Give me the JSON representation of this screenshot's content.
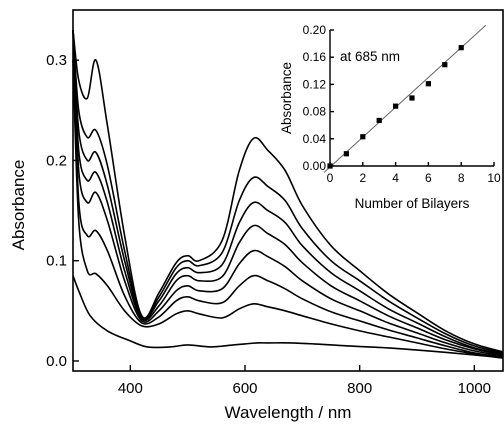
{
  "chart_data": [
    {
      "id": "spectra",
      "type": "line",
      "title": "",
      "xlabel": "Wavelength / nm",
      "ylabel": "Absorbance",
      "xlim": [
        300,
        1050
      ],
      "ylim": [
        -0.01,
        0.35
      ],
      "xticks": [
        400,
        600,
        800,
        1000
      ],
      "yticks": [
        0.0,
        0.1,
        0.2,
        0.3
      ],
      "ytick_labels": [
        "0.0",
        "0.1",
        "0.2",
        "0.3"
      ],
      "grid": false,
      "series": [
        {
          "bilayers": 1,
          "x": [
            300,
            310,
            330,
            360,
            400,
            430,
            470,
            500,
            540,
            580,
            600,
            620,
            640,
            680,
            720,
            780,
            850,
            920,
            1000,
            1050
          ],
          "y": [
            0.085,
            0.07,
            0.045,
            0.03,
            0.02,
            0.014,
            0.014,
            0.016,
            0.014,
            0.016,
            0.017,
            0.018,
            0.018,
            0.018,
            0.017,
            0.015,
            0.013,
            0.01,
            0.006,
            0.003
          ]
        },
        {
          "bilayers": 2,
          "x": [
            300,
            310,
            325,
            340,
            360,
            390,
            420,
            450,
            480,
            500,
            520,
            560,
            590,
            615,
            640,
            670,
            700,
            750,
            800,
            850,
            900,
            950,
            1000,
            1050
          ],
          "y": [
            0.3,
            0.14,
            0.09,
            0.087,
            0.075,
            0.05,
            0.035,
            0.037,
            0.047,
            0.05,
            0.047,
            0.043,
            0.052,
            0.057,
            0.054,
            0.05,
            0.045,
            0.037,
            0.03,
            0.024,
            0.018,
            0.012,
            0.007,
            0.003
          ]
        },
        {
          "bilayers": 3,
          "x": [
            300,
            310,
            325,
            340,
            360,
            390,
            420,
            450,
            480,
            500,
            520,
            560,
            590,
            615,
            640,
            670,
            700,
            750,
            800,
            850,
            900,
            950,
            1000,
            1050
          ],
          "y": [
            0.33,
            0.16,
            0.125,
            0.13,
            0.11,
            0.065,
            0.038,
            0.044,
            0.06,
            0.064,
            0.06,
            0.058,
            0.075,
            0.085,
            0.08,
            0.072,
            0.062,
            0.049,
            0.04,
            0.031,
            0.023,
            0.015,
            0.008,
            0.004
          ]
        },
        {
          "bilayers": 4,
          "x": [
            300,
            310,
            325,
            340,
            360,
            390,
            420,
            450,
            480,
            500,
            520,
            560,
            590,
            615,
            640,
            670,
            700,
            750,
            800,
            850,
            900,
            950,
            1000,
            1050
          ],
          "y": [
            0.33,
            0.19,
            0.158,
            0.168,
            0.14,
            0.08,
            0.04,
            0.05,
            0.07,
            0.075,
            0.07,
            0.072,
            0.097,
            0.11,
            0.104,
            0.094,
            0.08,
            0.062,
            0.05,
            0.038,
            0.028,
            0.018,
            0.01,
            0.005
          ]
        },
        {
          "bilayers": 5,
          "x": [
            300,
            310,
            325,
            340,
            360,
            390,
            420,
            450,
            480,
            500,
            520,
            560,
            590,
            615,
            640,
            670,
            700,
            750,
            800,
            850,
            900,
            950,
            1000,
            1050
          ],
          "y": [
            0.33,
            0.21,
            0.18,
            0.188,
            0.158,
            0.09,
            0.042,
            0.055,
            0.08,
            0.085,
            0.08,
            0.084,
            0.118,
            0.135,
            0.127,
            0.116,
            0.098,
            0.075,
            0.06,
            0.045,
            0.033,
            0.021,
            0.012,
            0.006
          ]
        },
        {
          "bilayers": 6,
          "x": [
            300,
            310,
            325,
            340,
            360,
            390,
            420,
            450,
            480,
            500,
            520,
            560,
            590,
            615,
            640,
            670,
            700,
            750,
            800,
            850,
            900,
            950,
            1000,
            1050
          ],
          "y": [
            0.33,
            0.23,
            0.2,
            0.208,
            0.175,
            0.1,
            0.043,
            0.06,
            0.087,
            0.093,
            0.088,
            0.096,
            0.138,
            0.158,
            0.15,
            0.138,
            0.115,
            0.088,
            0.07,
            0.052,
            0.038,
            0.024,
            0.013,
            0.007
          ]
        },
        {
          "bilayers": 7,
          "x": [
            300,
            310,
            325,
            340,
            360,
            390,
            420,
            450,
            480,
            500,
            520,
            560,
            590,
            615,
            640,
            670,
            700,
            750,
            800,
            850,
            900,
            950,
            1000,
            1050
          ],
          "y": [
            0.33,
            0.25,
            0.223,
            0.23,
            0.195,
            0.11,
            0.044,
            0.064,
            0.093,
            0.1,
            0.095,
            0.108,
            0.16,
            0.183,
            0.174,
            0.16,
            0.132,
            0.1,
            0.08,
            0.06,
            0.043,
            0.027,
            0.015,
            0.008
          ]
        },
        {
          "bilayers": 8,
          "x": [
            300,
            310,
            325,
            340,
            360,
            390,
            420,
            450,
            480,
            500,
            520,
            560,
            590,
            615,
            640,
            670,
            700,
            750,
            800,
            850,
            900,
            950,
            1000,
            1050
          ],
          "y": [
            0.33,
            0.28,
            0.262,
            0.3,
            0.235,
            0.125,
            0.045,
            0.068,
            0.098,
            0.105,
            0.1,
            0.12,
            0.19,
            0.222,
            0.21,
            0.19,
            0.155,
            0.115,
            0.09,
            0.067,
            0.048,
            0.03,
            0.017,
            0.009
          ]
        }
      ]
    },
    {
      "id": "inset",
      "type": "scatter",
      "title": "",
      "annotation": "at 685 nm",
      "xlabel": "Number of Bilayers",
      "ylabel": "Absorbance",
      "xlim": [
        0,
        10
      ],
      "ylim": [
        0,
        0.2
      ],
      "xticks": [
        0,
        2,
        4,
        6,
        8,
        10
      ],
      "xtick_labels": [
        "0",
        "2",
        "4",
        "6",
        "8",
        "10"
      ],
      "yticks": [
        0.0,
        0.04,
        0.08,
        0.12,
        0.16,
        0.2
      ],
      "ytick_labels": [
        "0.00",
        "0.04",
        "0.08",
        "0.12",
        "0.16",
        "0.20"
      ],
      "grid": false,
      "points": {
        "x": [
          0,
          1,
          2,
          3,
          4,
          5,
          6,
          7,
          8
        ],
        "y": [
          0.0,
          0.018,
          0.043,
          0.067,
          0.088,
          0.1,
          0.121,
          0.149,
          0.174
        ]
      },
      "fit_line": {
        "x": [
          0,
          9.5
        ],
        "y": [
          0.0,
          0.207
        ]
      }
    }
  ]
}
